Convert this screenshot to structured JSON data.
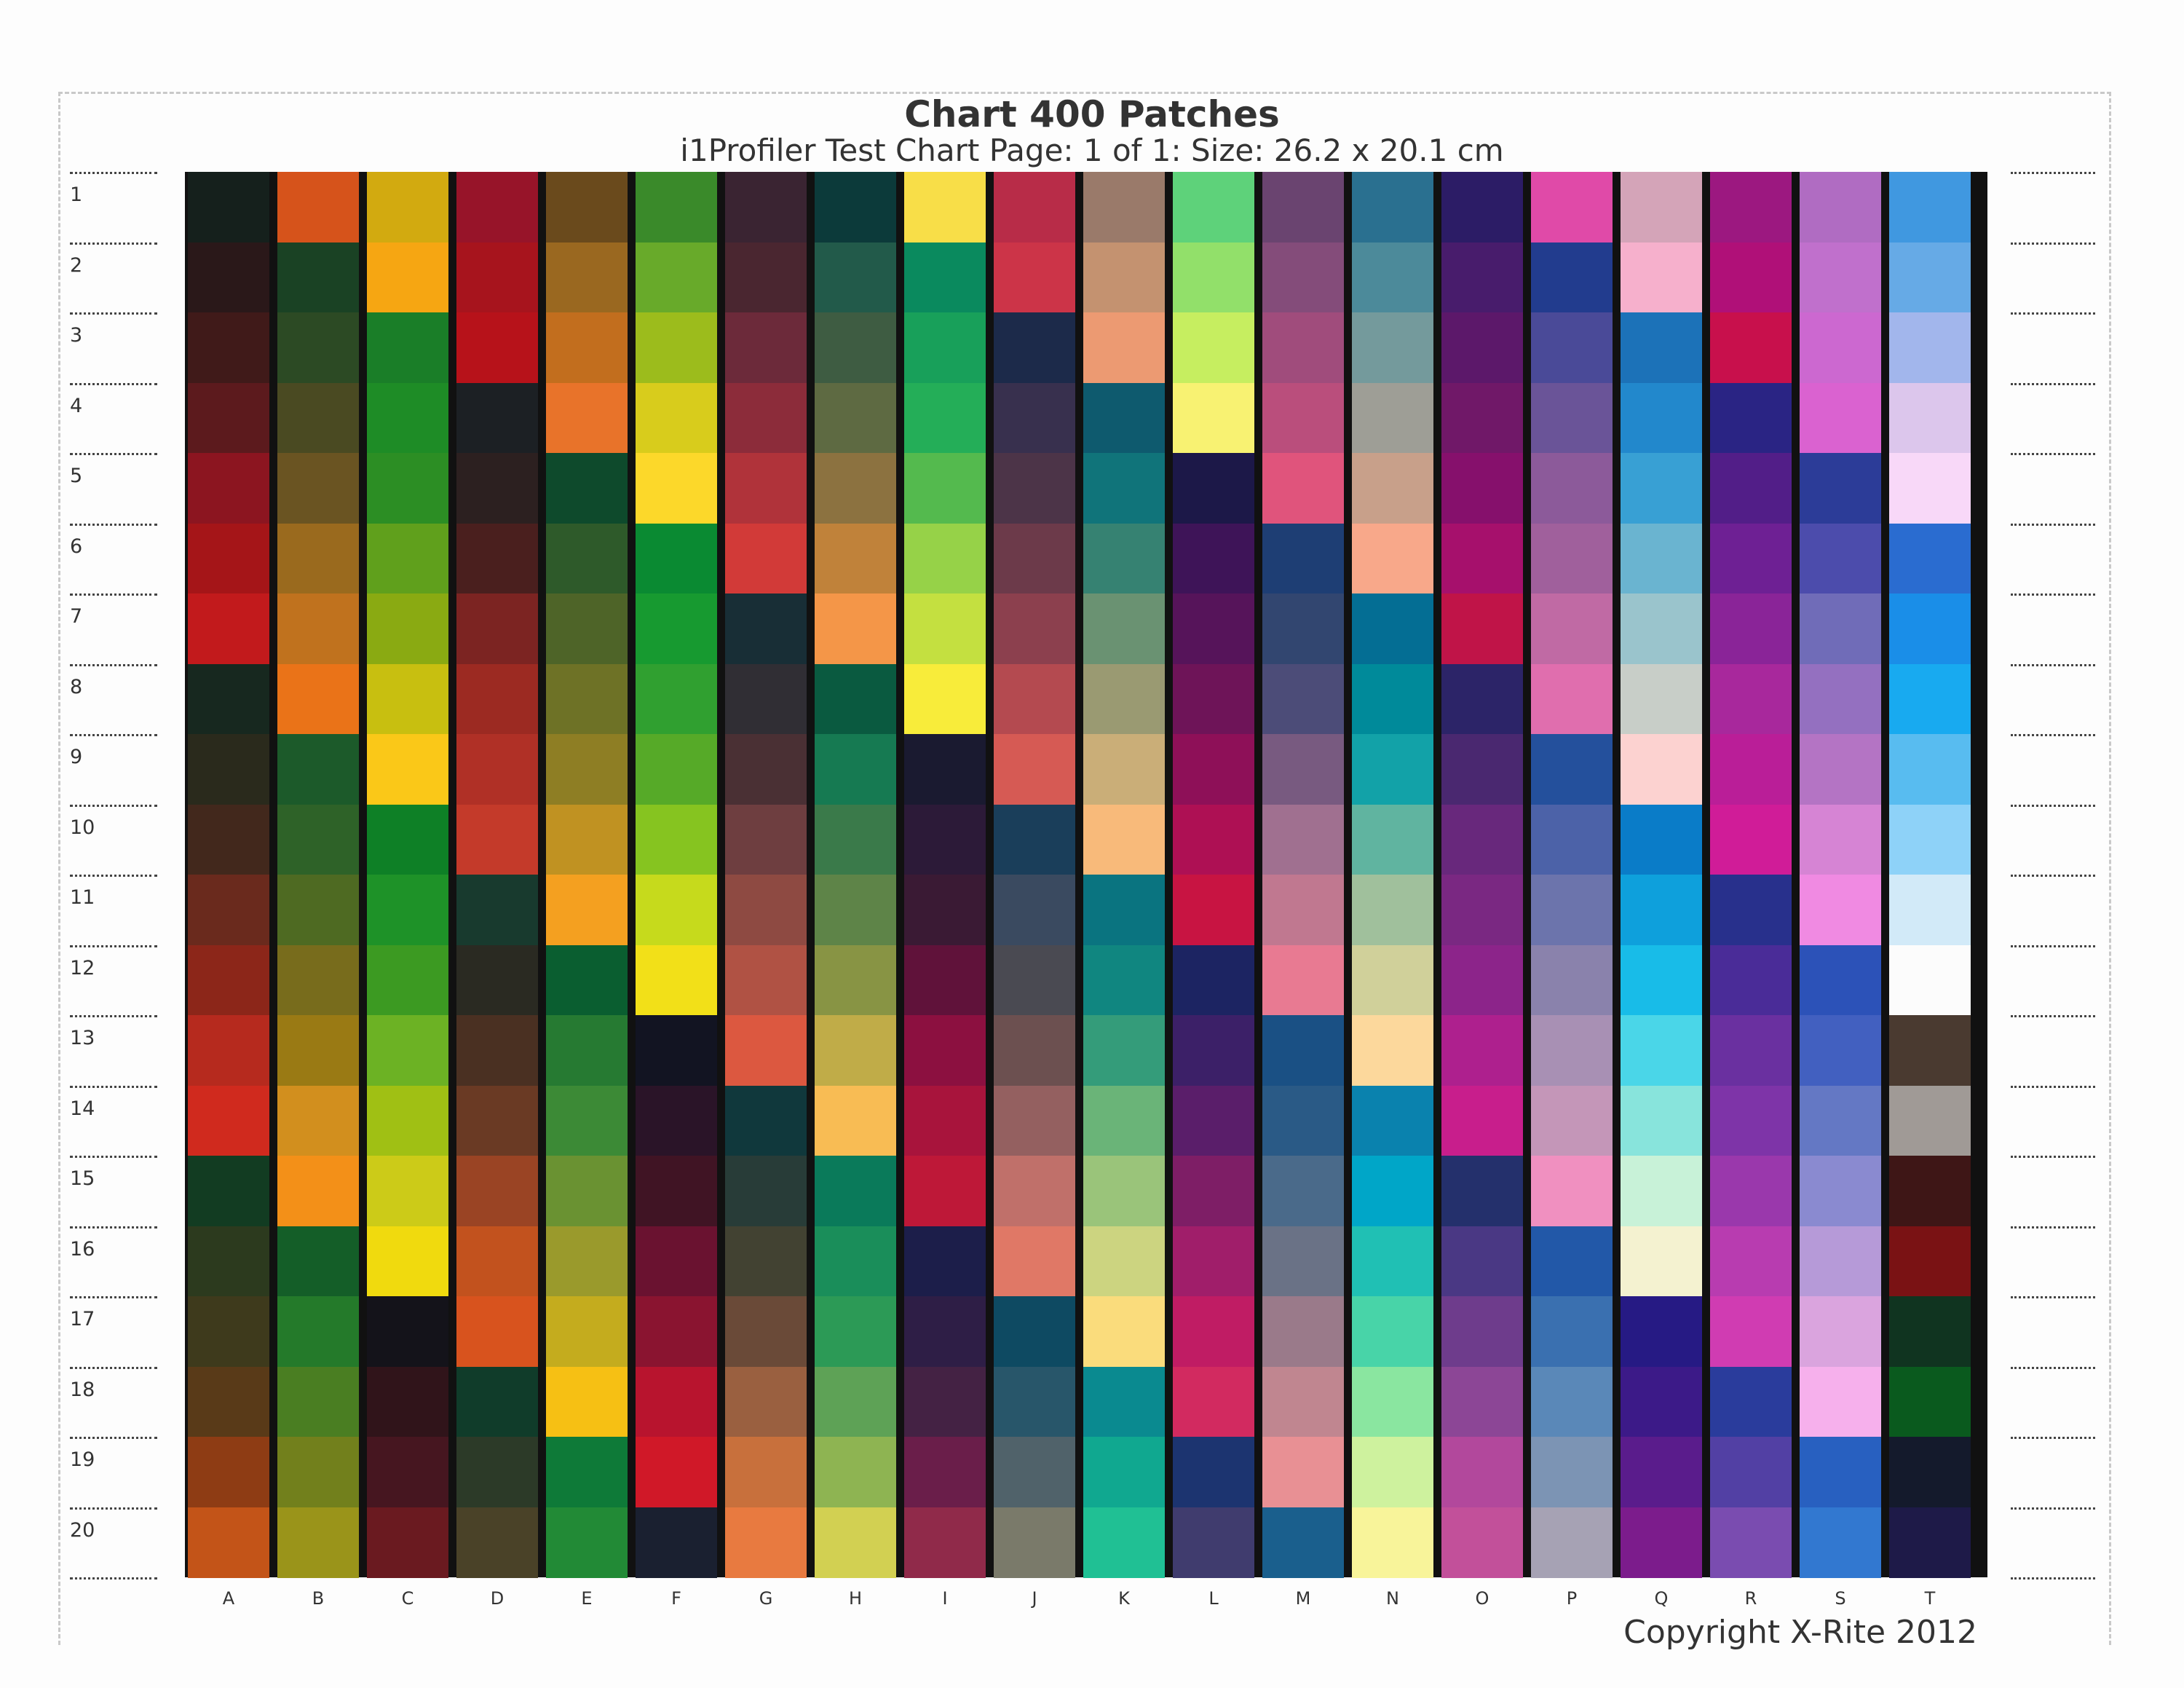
{
  "title": "Chart 400 Patches",
  "subtitle": "i1Profiler Test Chart Page: 1 of 1: Size: 26.2 x 20.1 cm",
  "copyright": "Copyright X-Rite 2012",
  "row_labels": [
    "1",
    "2",
    "3",
    "4",
    "5",
    "6",
    "7",
    "8",
    "9",
    "10",
    "11",
    "12",
    "13",
    "14",
    "15",
    "16",
    "17",
    "18",
    "19",
    "20"
  ],
  "column_labels": [
    "A",
    "B",
    "C",
    "D",
    "E",
    "F",
    "G",
    "H",
    "I",
    "J",
    "K",
    "L",
    "M",
    "N",
    "O",
    "P",
    "Q",
    "R",
    "S",
    "T"
  ],
  "patch_colors": {
    "A": [
      "#15201c",
      "#2a1819",
      "#401a19",
      "#5c1a1d",
      "#8c1520",
      "#a51518",
      "#c21a1c",
      "#17281f",
      "#2a2a1c",
      "#42281c",
      "#6a2a1d",
      "#8c2619",
      "#b62a1e",
      "#d02a1e",
      "#123c22",
      "#2c3a1e",
      "#3e3a1c",
      "#593a18",
      "#8e3c14",
      "#c35418"
    ],
    "B": [
      "#d6531b",
      "#1a4224",
      "#2c4a24",
      "#4a4a22",
      "#6a5422",
      "#9a6a1e",
      "#c0721e",
      "#ea7318",
      "#1c5a2a",
      "#2e6228",
      "#4e6a22",
      "#786c1c",
      "#9a7a14",
      "#d28f1e",
      "#f39018",
      "#145e28",
      "#247a2a",
      "#4a7e22",
      "#72801c",
      "#9a941a"
    ],
    "C": [
      "#d2aa10",
      "#f6a612",
      "#1a7e28",
      "#1e8c26",
      "#2c8e24",
      "#60a01c",
      "#8aaa12",
      "#c8bf10",
      "#fac818",
      "#0e8026",
      "#1e9228",
      "#3c9a22",
      "#6cb224",
      "#a0c014",
      "#cccb18",
      "#f0da0e",
      "#14131a",
      "#30141a",
      "#461620",
      "#6a1a20"
    ],
    "D": [
      "#971429",
      "#a7141d",
      "#b7121a",
      "#1c2024",
      "#2c2020",
      "#4a1f1e",
      "#7c2422",
      "#9c2a22",
      "#b03026",
      "#c43a2a",
      "#183a2e",
      "#2a2a22",
      "#4a3022",
      "#6a3a24",
      "#9a4424",
      "#c2521e",
      "#d8531e",
      "#103c2a",
      "#2c3a28",
      "#4a4228"
    ],
    "E": [
      "#6a4a1c",
      "#9a6820",
      "#c26e1e",
      "#e8732a",
      "#0e4a2c",
      "#2e5a2a",
      "#4e6428",
      "#6e7226",
      "#8e7e24",
      "#c09222",
      "#f4a020",
      "#0a5e30",
      "#267a32",
      "#3c8a36",
      "#6a9232",
      "#9a9a2c",
      "#c4ac1e",
      "#f6c014",
      "#0e7a38",
      "#228a36"
    ],
    "F": [
      "#3a8a2a",
      "#68aa2a",
      "#9cbc1c",
      "#d8cc1c",
      "#fcd82a",
      "#0a8a32",
      "#179a30",
      "#30a030",
      "#56aa28",
      "#86c420",
      "#c6da1c",
      "#f2e018",
      "#121422",
      "#2a1428",
      "#401424",
      "#6a1230",
      "#8a1430",
      "#b8142e",
      "#d01828",
      "#1a2030"
    ],
    "G": [
      "#3a2432",
      "#4a2630",
      "#6c2a3a",
      "#8c2c3a",
      "#b0333a",
      "#d23a38",
      "#182e36",
      "#302e34",
      "#4a3034",
      "#6e3e40",
      "#8e4a42",
      "#b05244",
      "#dc5840",
      "#10383c",
      "#283c38",
      "#424232",
      "#6a4a38",
      "#9a6040",
      "#c8703c",
      "#e87a40"
    ],
    "H": [
      "#0c3a3a",
      "#225a4a",
      "#3e5c42",
      "#5e6a42",
      "#8c7240",
      "#c0823a",
      "#f49648",
      "#0a5a40",
      "#167a52",
      "#3a7a4a",
      "#5e8448",
      "#889444",
      "#c0ac48",
      "#f8bc54",
      "#0a7a5a",
      "#1a8e5a",
      "#2c9a56",
      "#5ea256",
      "#8eb452",
      "#d2d052"
    ],
    "I": [
      "#f8de48",
      "#0a8a5e",
      "#18a05a",
      "#24ae58",
      "#54ba4e",
      "#96d248",
      "#c4e040",
      "#f8ec3a",
      "#1a1a30",
      "#2c1a38",
      "#3a1a34",
      "#60123a",
      "#8c1040",
      "#a8143c",
      "#be1838",
      "#1c1e4a",
      "#2e1e46",
      "#442244",
      "#6a1e4a",
      "#902a4a"
    ],
    "J": [
      "#b82c48",
      "#cc3448",
      "#1c2a4a",
      "#38304e",
      "#4c3448",
      "#6c3a4a",
      "#8c404e",
      "#b44a50",
      "#d65a54",
      "#1a3e5a",
      "#3a4a60",
      "#4a4a52",
      "#6c5050",
      "#946060",
      "#c0706a",
      "#e07866",
      "#0e4a62",
      "#28566a",
      "#50626a",
      "#7a7a6a"
    ],
    "K": [
      "#9a7a6a",
      "#c49270",
      "#ec9a72",
      "#0e5a6e",
      "#10747a",
      "#368272",
      "#6a9272",
      "#9a9a72",
      "#caae78",
      "#f8ba7a",
      "#0a7480",
      "#108680",
      "#349c7a",
      "#6ab478",
      "#9ac47a",
      "#ccd480",
      "#fadc7c",
      "#0a8a90",
      "#10a890",
      "#20c094"
    ],
    "L": [
      "#5ed27a",
      "#92e06a",
      "#c6ee60",
      "#f8f272",
      "#1c1848",
      "#3e1458",
      "#56145a",
      "#6e1458",
      "#8e1058",
      "#ae1054",
      "#c81442",
      "#1c2462",
      "#3c2068",
      "#5a1e6a",
      "#7e1e66",
      "#a01e6a",
      "#c01c64",
      "#d22a60",
      "#1c3470",
      "#403c6e"
    ],
    "M": [
      "#6a4470",
      "#844c7a",
      "#a04c7c",
      "#ba4e7c",
      "#e0547c",
      "#1e3e74",
      "#324670",
      "#4c4c78",
      "#785a80",
      "#a07090",
      "#c07890",
      "#e87a92",
      "#1a5084",
      "#2a5a86",
      "#4a6a8a",
      "#6a7286",
      "#9a7a8a",
      "#c08690",
      "#e89094",
      "#1a5f8d"
    ],
    "N": [
      "#2a7090",
      "#4c8a9a",
      "#749a9c",
      "#9e9e96",
      "#c8a08a",
      "#f8a88a",
      "#046e94",
      "#008a9a",
      "#12a2a8",
      "#60b4a0",
      "#a0c09c",
      "#d0d09a",
      "#fcd89c",
      "#0a82ae",
      "#00a6c8",
      "#20c0b4",
      "#48d4a8",
      "#8ae6a0",
      "#cef29e",
      "#f8f49a"
    ],
    "O": [
      "#2c1c66",
      "#481c6c",
      "#5c186a",
      "#701868",
      "#86106c",
      "#a6106c",
      "#c01448",
      "#2c2468",
      "#4a2870",
      "#68287c",
      "#7a2882",
      "#8c248a",
      "#ae208e",
      "#c81e8c",
      "#24306c",
      "#4a3884",
      "#6e3c8c",
      "#8c4696",
      "#b2489c",
      "#c2509a"
    ],
    "P": [
      "#e04aa8",
      "#223c8e",
      "#4a4a98",
      "#6a5498",
      "#8c5a9a",
      "#a0609c",
      "#c06aa4",
      "#e06eae",
      "#24509c",
      "#4c62a8",
      "#6c74ac",
      "#8a82ac",
      "#a890b4",
      "#c496b8",
      "#f090c0",
      "#2258a8",
      "#3a70b0",
      "#5a88b8",
      "#7c94b4",
      "#a6a2b4"
    ],
    "Q": [
      "#d4a4b8",
      "#f6b0cc",
      "#1c72b8",
      "#2288cc",
      "#38a0d4",
      "#6ab4d0",
      "#9ac4cc",
      "#c8cec8",
      "#fcd2d0",
      "#0a7cc8",
      "#0ea0dc",
      "#18bce8",
      "#4ad6e8",
      "#88e4dc",
      "#c8f2d8",
      "#f4f2d0",
      "#261a84",
      "#3c1a88",
      "#5a1c8c",
      "#7c1c8c"
    ],
    "R": [
      "#9c1880",
      "#b01078",
      "#c8104c",
      "#2a2484",
      "#521e88",
      "#6e2094",
      "#8a2498",
      "#a8289c",
      "#ba1e98",
      "#d01c98",
      "#28308c",
      "#4a2c98",
      "#6a30a0",
      "#7e34a8",
      "#9a38ac",
      "#b83cb0",
      "#d03cb2",
      "#2a3c9c",
      "#5240a4",
      "#7a4cb0"
    ],
    "S": [
      "#b06cc2",
      "#c070cc",
      "#cc68d0",
      "#da62d0",
      "#2c3c98",
      "#4c4cac",
      "#706cb8",
      "#9470c0",
      "#b474c4",
      "#d684d4",
      "#f08ae2",
      "#2c52b8",
      "#4260c0",
      "#6478c4",
      "#8a8ad0",
      "#b69ad8",
      "#daa4de",
      "#f6b0ec",
      "#2860c0",
      "#3278d0"
    ],
    "T": [
      "#4098e0",
      "#66aae6",
      "#a2b6ec",
      "#dcc6ec",
      "#f8d8f8",
      "#2a6cd0",
      "#1a8ee8",
      "#18aaf0",
      "#58bcf0",
      "#8ed2f8",
      "#d2eaf8",
      "#fcfcfc",
      "#4a3a30",
      "#a09a96",
      "#3e1616",
      "#7a1214",
      "#103420",
      "#0a5a1e",
      "#141a2c",
      "#1e1a48"
    ]
  }
}
